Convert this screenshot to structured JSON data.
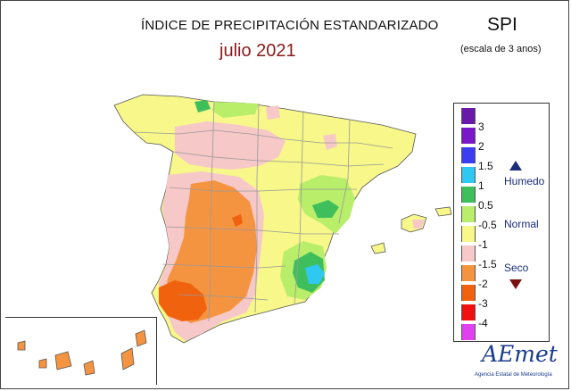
{
  "header": {
    "title": "ÍNDICE DE PRECIPITACIÓN ESTANDARIZADO",
    "subtitle": "julio 2021",
    "index_label": "SPI",
    "scale_label": "(escala de 3 anos)"
  },
  "legend": {
    "levels": [
      {
        "label": "3",
        "color": "#7a17c9"
      },
      {
        "label": "2",
        "color": "#3b3ef0"
      },
      {
        "label": "1.5",
        "color": "#2ec8f0"
      },
      {
        "label": "1",
        "color": "#3fbf5c"
      },
      {
        "label": "0.5",
        "color": "#b8ee6a"
      },
      {
        "label": "-0.5",
        "color": "#f7f78a"
      },
      {
        "label": "-1",
        "color": "#f7c8c8"
      },
      {
        "label": "-1.5",
        "color": "#f59440"
      },
      {
        "label": "-2",
        "color": "#f0620e"
      },
      {
        "label": "-3",
        "color": "#f01010"
      },
      {
        "label": "-4",
        "color": "#e040f0"
      }
    ],
    "top_swatch_color": "#6a1aa8",
    "humid_label": "Humedo",
    "normal_label": "Normal",
    "dry_label": "Seco"
  },
  "map_colors": {
    "base": "#f7f78a",
    "light_green": "#b8ee6a",
    "green": "#3fbf5c",
    "cyan": "#2ec8f0",
    "pink": "#f7c8c8",
    "orange": "#f59440",
    "dark_orange": "#f0620e",
    "border": "#999999",
    "outline": "#555555"
  },
  "logo": {
    "text": "AEmet",
    "subtext": "Agencia Estatal de Meteorología"
  }
}
